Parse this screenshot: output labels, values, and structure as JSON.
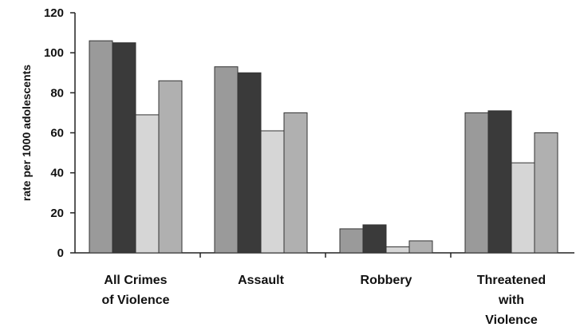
{
  "chart_data": {
    "type": "bar",
    "title": "",
    "xlabel": "",
    "ylabel": "rate per 1000 adolescents",
    "ylim": [
      0,
      120
    ],
    "yticks": [
      0,
      20,
      40,
      60,
      80,
      100,
      120
    ],
    "grid": false,
    "legend": "none",
    "categories": [
      [
        "All Crimes",
        "of Violence"
      ],
      [
        "Assault"
      ],
      [
        "Robbery"
      ],
      [
        "Threatened",
        "with",
        "Violence"
      ]
    ],
    "series": [
      {
        "color": "#9a9a9a",
        "values": [
          106,
          93,
          12,
          70
        ]
      },
      {
        "color": "#3a3a3a",
        "values": [
          105,
          90,
          14,
          71
        ]
      },
      {
        "color": "#d6d6d6",
        "values": [
          69,
          61,
          3,
          45
        ]
      },
      {
        "color": "#b0b0b0",
        "values": [
          86,
          70,
          6,
          60
        ]
      }
    ]
  }
}
